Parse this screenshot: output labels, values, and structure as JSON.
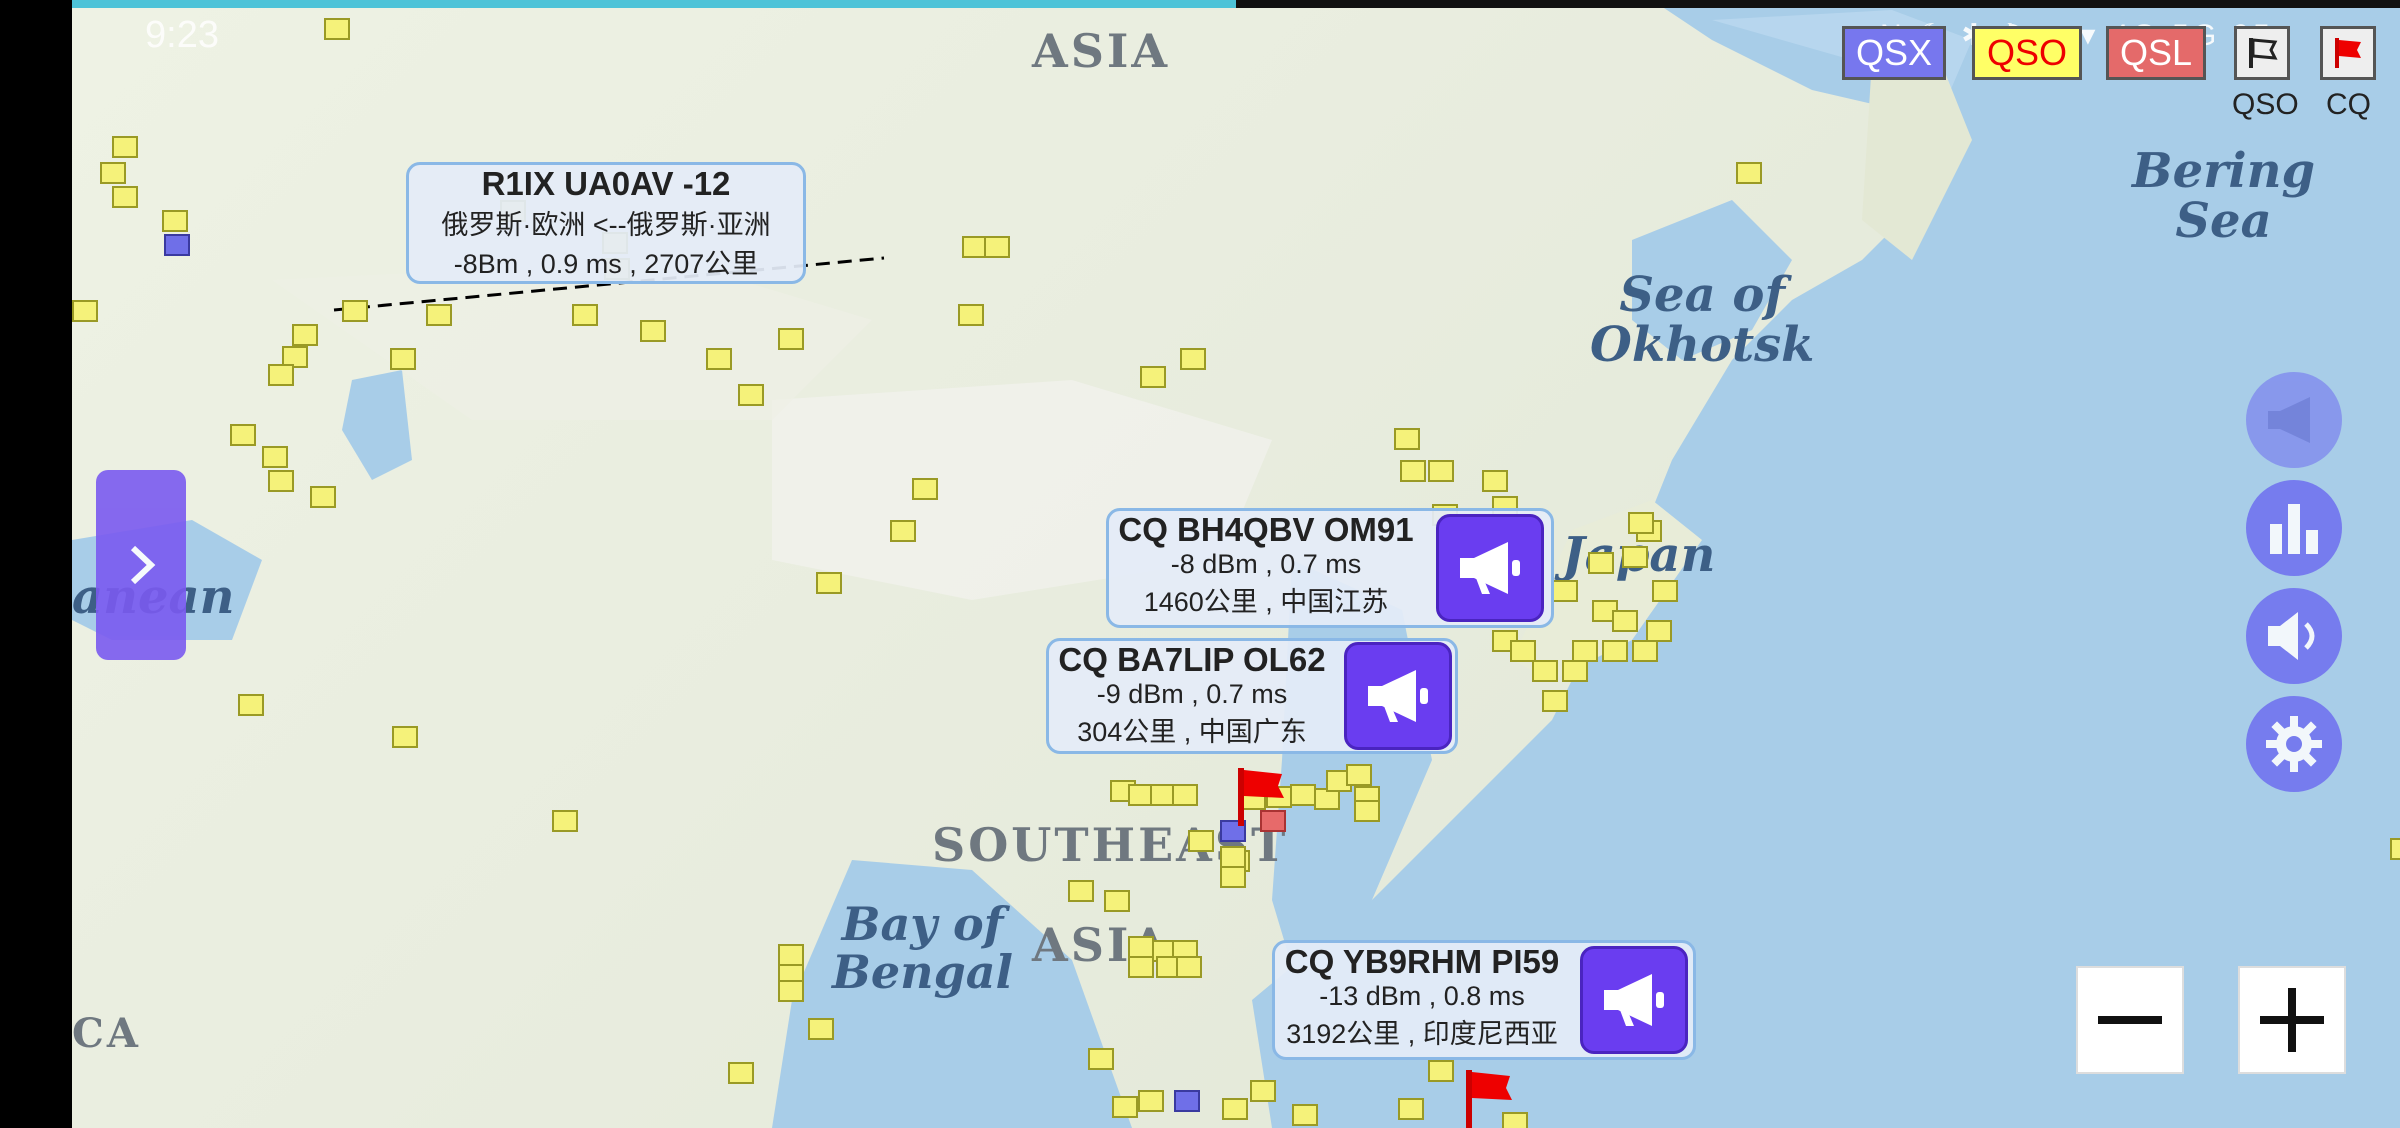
{
  "status_bar": {
    "time": "9:23",
    "icons": "N ☾ ✱ ⚑ ◔ ▾ 4G 5G 95"
  },
  "top_buttons": {
    "qsx": "QSX",
    "qso": "QSO",
    "qsl": "QSL",
    "qso_label": "QSO",
    "cq_label": "CQ"
  },
  "map_labels": {
    "asia": "ASIA",
    "southeast_1": "SOUTHEAST",
    "southeast_2": "ASIA",
    "bering_1": "Bering",
    "bering_2": "Sea",
    "okhotsk_1": "Sea of",
    "okhotsk_2": "Okhotsk",
    "japan": "Japan",
    "bengal_1": "Bay of",
    "bengal_2": "Bengal",
    "mediterranean": "anean",
    "africa": "CA"
  },
  "callouts": {
    "r1ix": {
      "line1": "R1IX UA0AV -12",
      "line2": "俄罗斯·欧洲 <--俄罗斯·亚洲",
      "line3": "-8Bm , 0.9 ms , 2707公里"
    },
    "bh4qbv": {
      "line1": "CQ BH4QBV OM91",
      "line2": "-8 dBm , 0.7 ms",
      "line3": "1460公里 , 中国江苏"
    },
    "ba7lip": {
      "line1": "CQ BA7LIP OL62",
      "line2": "-9 dBm , 0.7 ms",
      "line3": "304公里 , 中国广东"
    },
    "yb9rhm": {
      "line1": "CQ YB9RHM PI59",
      "line2": "-13 dBm , 0.8 ms",
      "line3": "3192公里 , 印度尼西亚"
    }
  },
  "zoom": {
    "minus": "−",
    "plus": "+"
  },
  "icons": [
    "chevron-right-icon",
    "megaphone-icon",
    "bar-chart-icon",
    "volume-icon",
    "gear-icon",
    "flag-icon"
  ],
  "colors": {
    "accent": "#6a3df0",
    "grid_square": "#f5f27a",
    "qsx": "#7777ee",
    "qso": "#ffff66",
    "qsl": "#e46a6a"
  }
}
